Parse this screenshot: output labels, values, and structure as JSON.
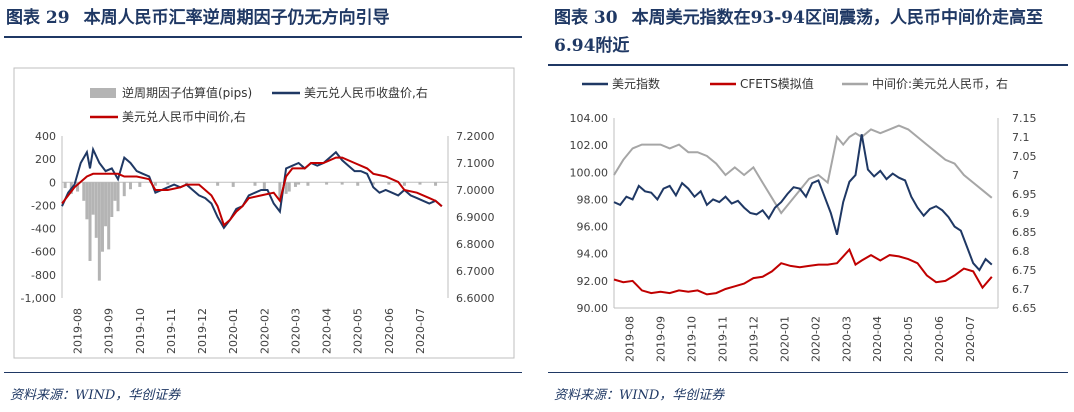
{
  "left": {
    "figure_no": "图表 29",
    "title": "本周人民币汇率逆周期因子仍无方向引导",
    "source": "资料来源：WIND，华创证券",
    "chart_data": {
      "type": "bar+line",
      "x_ticks": [
        "2019-08",
        "2019-09",
        "2019-10",
        "2019-11",
        "2019-12",
        "2020-01",
        "2020-02",
        "2020-03",
        "2020-04",
        "2020-05",
        "2020-06",
        "2020-07"
      ],
      "y_left": {
        "range": [
          -1000,
          400
        ],
        "ticks": [
          -1000,
          -800,
          -600,
          -400,
          -200,
          0,
          200,
          400
        ],
        "tick_labels": [
          "-1,000",
          "-800",
          "-600",
          "-400",
          "-200",
          "0",
          "200",
          "400"
        ]
      },
      "y_right": {
        "range": [
          6.6,
          7.2
        ],
        "ticks": [
          6.6,
          6.7,
          6.8,
          6.9,
          7.0,
          7.1,
          7.2
        ],
        "tick_labels": [
          "6.6000",
          "6.7000",
          "6.8000",
          "6.9000",
          "7.0000",
          "7.1000",
          "7.2000"
        ]
      },
      "legend": [
        "逆周期因子估算值(pips)",
        "美元兑人民币收盘价,右",
        "美元兑人民币中间价,右"
      ],
      "colors": {
        "bars": "#b4b4b4",
        "close": "#1f3864",
        "mid": "#c00000"
      },
      "t_range": [
        0,
        12.4
      ],
      "bars": {
        "t": [
          0.1,
          0.3,
          0.5,
          0.7,
          0.8,
          0.9,
          1.0,
          1.1,
          1.2,
          1.3,
          1.4,
          1.5,
          1.6,
          1.7,
          1.8,
          2.0,
          2.2,
          2.5,
          3.0,
          3.4,
          4.0,
          5.0,
          5.5,
          6.2,
          6.5,
          7.0,
          7.2,
          7.3,
          7.5,
          7.6,
          7.9,
          8.5,
          9.0,
          9.5,
          10.0,
          10.5,
          11.0,
          11.5,
          12.0
        ],
        "values": [
          -50,
          -100,
          -80,
          -160,
          -320,
          -680,
          -280,
          -480,
          -850,
          -600,
          -380,
          -580,
          -300,
          -160,
          -250,
          -120,
          -60,
          -40,
          -30,
          -20,
          -20,
          -30,
          -40,
          -30,
          -60,
          -140,
          -100,
          -80,
          -40,
          -20,
          -30,
          -20,
          -20,
          -30,
          -20,
          -20,
          -30,
          -20,
          -30
        ]
      },
      "close": {
        "t": [
          0.0,
          0.2,
          0.4,
          0.6,
          0.8,
          0.9,
          1.0,
          1.2,
          1.4,
          1.6,
          1.8,
          2.0,
          2.2,
          2.4,
          2.6,
          2.8,
          3.0,
          3.2,
          3.4,
          3.6,
          3.8,
          4.0,
          4.2,
          4.4,
          4.6,
          4.8,
          5.0,
          5.2,
          5.4,
          5.6,
          5.8,
          6.0,
          6.2,
          6.4,
          6.6,
          6.8,
          7.0,
          7.2,
          7.4,
          7.6,
          7.8,
          8.0,
          8.2,
          8.4,
          8.6,
          8.8,
          9.0,
          9.2,
          9.4,
          9.6,
          9.8,
          10.0,
          10.2,
          10.4,
          10.6,
          10.8,
          11.0,
          11.2,
          11.4,
          11.6,
          11.8,
          12.0,
          12.2
        ],
        "values": [
          6.94,
          6.99,
          7.02,
          7.1,
          7.14,
          7.08,
          7.15,
          7.1,
          7.07,
          7.08,
          7.04,
          7.12,
          7.1,
          7.07,
          7.06,
          7.05,
          6.99,
          7.0,
          7.01,
          7.02,
          7.01,
          7.02,
          7.0,
          6.98,
          6.97,
          6.95,
          6.9,
          6.86,
          6.89,
          6.93,
          6.94,
          6.98,
          6.99,
          7.0,
          7.0,
          6.95,
          6.92,
          7.08,
          7.09,
          7.1,
          7.08,
          7.1,
          7.09,
          7.1,
          7.12,
          7.14,
          7.11,
          7.09,
          7.07,
          7.07,
          7.06,
          7.01,
          6.99,
          7.0,
          6.99,
          6.98,
          7.0,
          6.98,
          6.97,
          6.96,
          6.95,
          6.96,
          6.94
        ]
      },
      "mid": {
        "t": [
          0.0,
          0.4,
          0.8,
          1.0,
          1.4,
          1.8,
          2.0,
          2.4,
          2.8,
          3.0,
          3.4,
          3.8,
          4.0,
          4.4,
          4.8,
          5.0,
          5.2,
          5.4,
          5.6,
          5.8,
          6.0,
          6.4,
          6.8,
          7.0,
          7.2,
          7.4,
          7.8,
          8.0,
          8.4,
          8.8,
          9.0,
          9.4,
          9.8,
          10.0,
          10.4,
          10.8,
          11.0,
          11.4,
          11.8,
          12.0,
          12.2
        ],
        "values": [
          6.95,
          7.01,
          7.05,
          7.06,
          7.06,
          7.06,
          7.05,
          7.05,
          7.04,
          7.0,
          7.0,
          7.01,
          7.02,
          7.02,
          6.98,
          6.94,
          6.87,
          6.89,
          6.92,
          6.94,
          6.97,
          6.98,
          6.99,
          6.96,
          7.05,
          7.08,
          7.08,
          7.1,
          7.1,
          7.12,
          7.12,
          7.1,
          7.08,
          7.06,
          7.05,
          7.03,
          7.0,
          6.99,
          6.97,
          6.96,
          6.94
        ]
      }
    }
  },
  "right": {
    "figure_no": "图表 30",
    "title": "本周美元指数在93-94区间震荡，人民币中间价走高至6.94附近",
    "source": "资料来源：WIND，华创证券",
    "chart_data": {
      "type": "line",
      "x_ticks": [
        "2019-08",
        "2019-09",
        "2019-10",
        "2019-11",
        "2019-12",
        "2020-01",
        "2020-02",
        "2020-03",
        "2020-04",
        "2020-05",
        "2020-06",
        "2020-07"
      ],
      "y_left": {
        "range": [
          90,
          104
        ],
        "ticks": [
          90,
          92,
          94,
          96,
          98,
          100,
          102,
          104
        ],
        "tick_labels": [
          "90.00",
          "92.00",
          "94.00",
          "96.00",
          "98.00",
          "100.00",
          "102.00",
          "104.00"
        ]
      },
      "y_right": {
        "range": [
          6.65,
          7.15
        ],
        "ticks": [
          6.65,
          6.7,
          6.75,
          6.8,
          6.85,
          6.9,
          6.95,
          7.0,
          7.05,
          7.1,
          7.15
        ],
        "tick_labels": [
          "6.65",
          "6.7",
          "6.75",
          "6.8",
          "6.85",
          "6.9",
          "6.95",
          "7",
          "7.05",
          "7.1",
          "7.15"
        ]
      },
      "legend": [
        "美元指数",
        "CFETS模拟值",
        "中间价:美元兑人民币，右"
      ],
      "colors": {
        "usd": "#1f3864",
        "cfets": "#c00000",
        "mid": "#a6a6a6"
      },
      "t_range": [
        0,
        12.4
      ],
      "usd": {
        "t": [
          0.0,
          0.2,
          0.4,
          0.6,
          0.8,
          1.0,
          1.2,
          1.4,
          1.6,
          1.8,
          2.0,
          2.2,
          2.4,
          2.6,
          2.8,
          3.0,
          3.2,
          3.4,
          3.6,
          3.8,
          4.0,
          4.2,
          4.4,
          4.6,
          4.8,
          5.0,
          5.2,
          5.4,
          5.6,
          5.8,
          6.0,
          6.2,
          6.4,
          6.6,
          6.8,
          7.0,
          7.2,
          7.4,
          7.6,
          7.8,
          8.0,
          8.2,
          8.4,
          8.6,
          8.8,
          9.0,
          9.2,
          9.4,
          9.6,
          9.8,
          10.0,
          10.2,
          10.4,
          10.6,
          10.8,
          11.0,
          11.2,
          11.4,
          11.6,
          11.8,
          12.0,
          12.2
        ],
        "values": [
          97.8,
          97.6,
          98.2,
          98.0,
          99.0,
          98.6,
          98.5,
          98.0,
          98.8,
          99.0,
          98.3,
          99.2,
          98.8,
          98.2,
          98.6,
          97.6,
          98.0,
          97.8,
          98.2,
          97.7,
          97.9,
          97.4,
          97.0,
          96.9,
          97.2,
          96.6,
          97.4,
          97.8,
          98.4,
          98.9,
          98.8,
          98.2,
          99.2,
          99.4,
          98.2,
          97.0,
          95.4,
          97.8,
          99.3,
          99.8,
          102.8,
          100.2,
          99.7,
          100.1,
          99.5,
          99.9,
          99.6,
          99.4,
          98.2,
          97.4,
          96.8,
          97.3,
          97.5,
          97.2,
          96.7,
          96.0,
          95.7,
          94.5,
          93.3,
          92.8,
          93.6,
          93.2
        ]
      },
      "cfets": {
        "t": [
          0.0,
          0.3,
          0.6,
          0.9,
          1.2,
          1.5,
          1.8,
          2.1,
          2.4,
          2.7,
          3.0,
          3.3,
          3.6,
          3.9,
          4.2,
          4.5,
          4.8,
          5.1,
          5.4,
          5.7,
          6.0,
          6.3,
          6.6,
          6.9,
          7.2,
          7.4,
          7.6,
          7.8,
          8.0,
          8.3,
          8.6,
          8.9,
          9.2,
          9.5,
          9.8,
          10.1,
          10.4,
          10.7,
          11.0,
          11.3,
          11.6,
          11.9,
          12.2
        ],
        "values": [
          92.1,
          91.9,
          92.0,
          91.3,
          91.1,
          91.2,
          91.1,
          91.3,
          91.2,
          91.3,
          91.0,
          91.1,
          91.4,
          91.6,
          91.8,
          92.2,
          92.3,
          92.7,
          93.3,
          93.1,
          93.0,
          93.1,
          93.2,
          93.2,
          93.3,
          93.8,
          94.3,
          93.2,
          93.5,
          93.9,
          93.5,
          93.9,
          93.8,
          93.6,
          93.3,
          92.4,
          91.9,
          92.0,
          92.4,
          92.9,
          92.7,
          91.5,
          92.3
        ]
      },
      "mid": {
        "t": [
          0.0,
          0.3,
          0.6,
          0.9,
          1.2,
          1.5,
          1.8,
          2.1,
          2.4,
          2.7,
          3.0,
          3.3,
          3.6,
          3.9,
          4.2,
          4.5,
          4.8,
          5.1,
          5.4,
          5.7,
          6.0,
          6.3,
          6.6,
          6.9,
          7.2,
          7.4,
          7.6,
          7.8,
          8.0,
          8.3,
          8.6,
          8.9,
          9.2,
          9.5,
          9.8,
          10.1,
          10.4,
          10.7,
          11.0,
          11.3,
          11.6,
          11.9,
          12.2
        ],
        "values": [
          7.0,
          7.04,
          7.07,
          7.08,
          7.08,
          7.08,
          7.07,
          7.08,
          7.06,
          7.06,
          7.05,
          7.03,
          7.0,
          7.02,
          7.0,
          7.02,
          6.98,
          6.94,
          6.9,
          6.93,
          6.96,
          6.99,
          7.0,
          6.98,
          7.1,
          7.08,
          7.1,
          7.11,
          7.1,
          7.12,
          7.11,
          7.12,
          7.13,
          7.12,
          7.1,
          7.08,
          7.06,
          7.04,
          7.03,
          7.0,
          6.98,
          6.96,
          6.94
        ]
      }
    }
  }
}
